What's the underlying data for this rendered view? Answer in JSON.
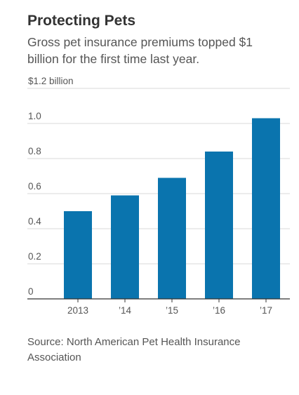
{
  "title": "Protecting Pets",
  "subtitle": "Gross pet insurance premiums topped $1 billion for the first time last year.",
  "source": "Source: North American Pet Health Insurance Association",
  "colors": {
    "bar": "#0a74ae",
    "grid": "#d9d9d9",
    "axis": "#333333"
  },
  "chart_data": {
    "type": "bar",
    "categories": [
      "2013",
      "’14",
      "’15",
      "’16",
      "’17"
    ],
    "values": [
      0.5,
      0.59,
      0.69,
      0.84,
      1.03
    ],
    "ylim": [
      0,
      1.2
    ],
    "yticks": [
      0,
      0.2,
      0.4,
      0.6,
      0.8,
      1.0,
      1.2
    ],
    "ytick_labels": [
      "0",
      "0.2",
      "0.4",
      "0.6",
      "0.8",
      "1.0",
      "$1.2 billion"
    ],
    "grid": true
  }
}
